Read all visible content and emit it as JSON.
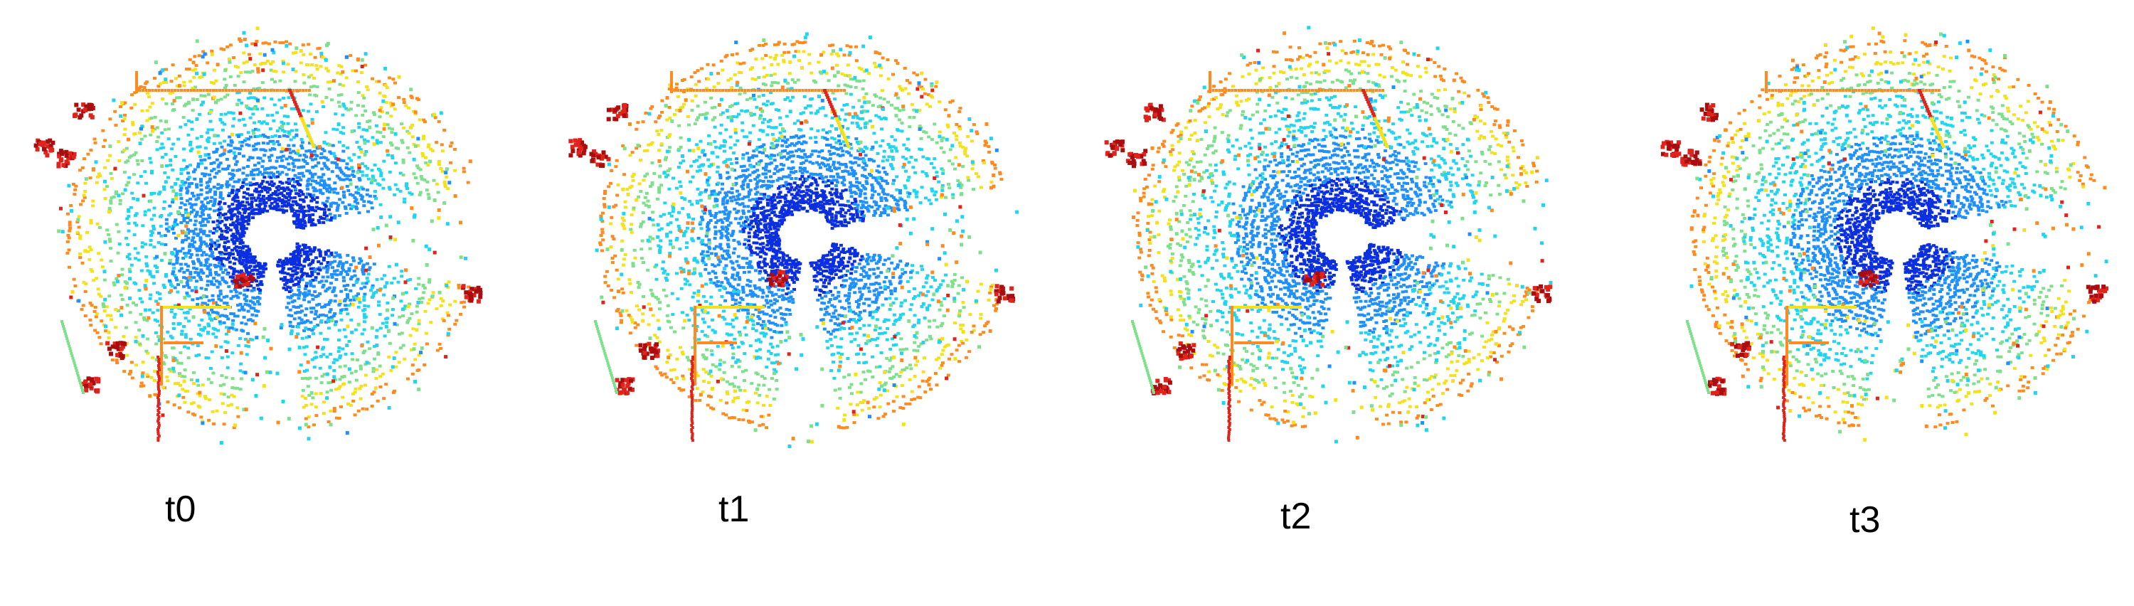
{
  "frames": [
    {
      "label": "t0"
    },
    {
      "label": "t1"
    },
    {
      "label": "t2"
    },
    {
      "label": "t3"
    }
  ],
  "colors": {
    "near": "#0a2fe0",
    "mid": "#1e90ff",
    "cyan": "#21d4f0",
    "green": "#7ee08a",
    "yellow": "#f5e118",
    "orange": "#ff8a1f",
    "red": "#e0241b",
    "darkred": "#a80e10"
  }
}
